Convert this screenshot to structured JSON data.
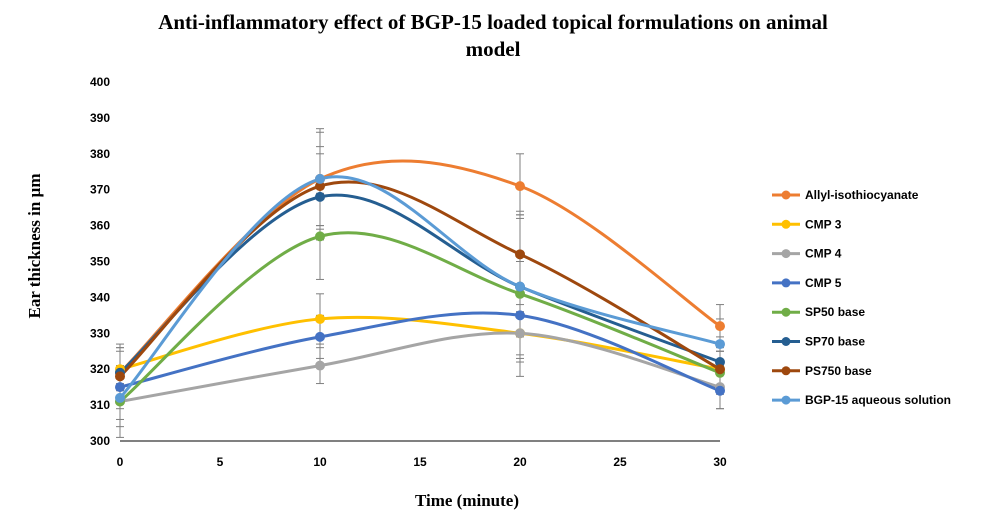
{
  "chart_data": {
    "type": "line",
    "title_lines": [
      "Anti-inflammatory effect of BGP-15 loaded topical formulations on animal",
      "model"
    ],
    "xlabel": "Time (minute)",
    "ylabel": "Ear thickness in µm",
    "xlim": [
      0,
      30
    ],
    "ylim": [
      300,
      400
    ],
    "x_ticks": [
      0,
      5,
      10,
      15,
      20,
      25,
      30
    ],
    "y_ticks": [
      300,
      310,
      320,
      330,
      340,
      350,
      360,
      370,
      380,
      390,
      400
    ],
    "x": [
      0,
      10,
      20,
      30
    ],
    "grid": false,
    "smooth": true,
    "legend_position": "right",
    "series": [
      {
        "name": "Allyl-isothiocyanate",
        "color": "#ED7D31",
        "values": [
          319,
          373,
          371,
          332
        ],
        "error": [
          7,
          13,
          9,
          6
        ]
      },
      {
        "name": "CMP 3",
        "color": "#FFC000",
        "values": [
          320,
          334,
          330,
          320
        ],
        "error": [
          6,
          7,
          6,
          5
        ]
      },
      {
        "name": "CMP 4",
        "color": "#A5A5A5",
        "values": [
          311,
          321,
          330,
          315
        ],
        "error": [
          5,
          5,
          8,
          6
        ]
      },
      {
        "name": "CMP 5",
        "color": "#4472C4",
        "values": [
          315,
          329,
          335,
          314
        ],
        "error": [
          6,
          6,
          6,
          5
        ]
      },
      {
        "name": "SP50 base",
        "color": "#70AD47",
        "values": [
          311,
          357,
          341,
          319
        ],
        "error": [
          10,
          12,
          23,
          6
        ]
      },
      {
        "name": "SP70 base",
        "color": "#255E91",
        "values": [
          319,
          368,
          343,
          322
        ],
        "error": [
          8,
          12,
          7,
          7
        ]
      },
      {
        "name": "PS750 base",
        "color": "#9E480E",
        "values": [
          318,
          371,
          352,
          320
        ],
        "error": [
          7,
          11,
          11,
          5
        ]
      },
      {
        "name": "BGP-15 aqueous solution",
        "color": "#5B9BD5",
        "values": [
          312,
          373,
          343,
          327
        ],
        "error": [
          8,
          14,
          20,
          7
        ]
      }
    ]
  }
}
